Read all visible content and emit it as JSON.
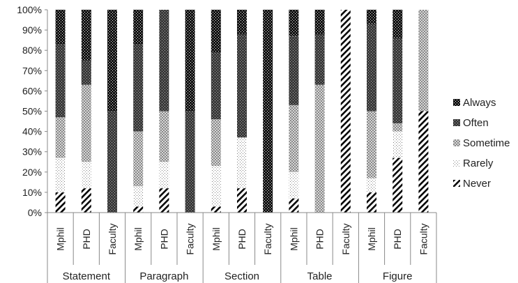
{
  "chart_data": {
    "type": "bar",
    "stacked": true,
    "percent": true,
    "title": "",
    "xlabel": "",
    "ylabel": "",
    "ylim": [
      0,
      100
    ],
    "y_ticks": [
      "0%",
      "10%",
      "20%",
      "30%",
      "40%",
      "50%",
      "60%",
      "70%",
      "80%",
      "90%",
      "100%"
    ],
    "grid": false,
    "legend_position": "right",
    "groups": [
      {
        "label": "Statement",
        "categories": [
          "Mphil",
          "PHD",
          "Faculty"
        ]
      },
      {
        "label": "Paragraph",
        "categories": [
          "Mphil",
          "PHD",
          "Faculty"
        ]
      },
      {
        "label": "Section",
        "categories": [
          "Mphil",
          "PHD",
          "Faculty"
        ]
      },
      {
        "label": "Table",
        "categories": [
          "Mphil",
          "PHD",
          "Faculty"
        ]
      },
      {
        "label": "Figure",
        "categories": [
          "Mphil",
          "PHD",
          "Faculty"
        ]
      }
    ],
    "series": [
      {
        "name": "Never",
        "pattern": "diagonal",
        "values": [
          10,
          12,
          0,
          3,
          12,
          0,
          3,
          12,
          0,
          7,
          0,
          100,
          10,
          27,
          50
        ]
      },
      {
        "name": "Rarely",
        "pattern": "sparse-dots",
        "values": [
          17,
          13,
          0,
          10,
          13,
          0,
          20,
          25,
          0,
          13,
          0,
          0,
          7,
          13,
          0
        ]
      },
      {
        "name": "Sometime",
        "pattern": "crosshatch",
        "values": [
          20,
          38,
          0,
          27,
          25,
          0,
          23,
          0,
          0,
          33,
          63,
          0,
          33,
          4,
          50
        ]
      },
      {
        "name": "Often",
        "pattern": "dark-dots",
        "values": [
          36,
          12,
          50,
          43,
          50,
          50,
          33,
          51,
          0,
          34,
          25,
          0,
          43,
          42,
          0
        ]
      },
      {
        "name": "Always",
        "pattern": "black-dots",
        "values": [
          17,
          25,
          50,
          17,
          0,
          50,
          21,
          12,
          100,
          13,
          12,
          0,
          7,
          14,
          0
        ]
      }
    ],
    "legend_order": [
      "Always",
      "Often",
      "Sometime",
      "Rarely",
      "Never"
    ]
  }
}
